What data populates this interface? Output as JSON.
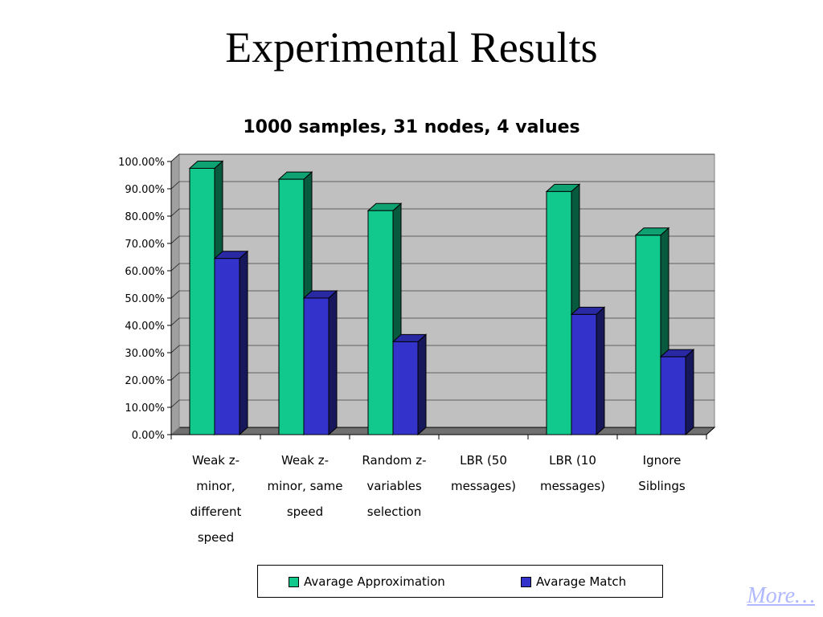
{
  "slide": {
    "title": "Experimental Results",
    "more_link": "More…"
  },
  "chart_data": {
    "type": "bar",
    "title": "1000 samples, 31 nodes, 4 values",
    "categories": [
      "Weak z-minor, different speed",
      "Weak z-minor, same speed",
      "Random z-variables selection",
      "LBR (50 messages)",
      "LBR (10 messages)",
      "Ignore Siblings"
    ],
    "category_label_lines": [
      [
        "Weak z-",
        "minor,",
        "different",
        "speed"
      ],
      [
        "Weak z-",
        "minor, same",
        "speed"
      ],
      [
        "Random z-",
        "variables",
        "selection"
      ],
      [
        "LBR (50",
        "messages)"
      ],
      [
        "LBR (10",
        "messages)"
      ],
      [
        "Ignore",
        "Siblings"
      ]
    ],
    "series": [
      {
        "name": "Avarage Approximation",
        "values": [
          0.975,
          0.935,
          0.82,
          null,
          0.89,
          0.73
        ],
        "color": "#12c98d"
      },
      {
        "name": "Avarage Match",
        "values": [
          0.645,
          0.5,
          0.34,
          null,
          0.44,
          0.285
        ],
        "color": "#3333cc"
      }
    ],
    "ylim": [
      0,
      1
    ],
    "yticks": [
      "0.00%",
      "10.00%",
      "20.00%",
      "30.00%",
      "40.00%",
      "50.00%",
      "60.00%",
      "70.00%",
      "80.00%",
      "90.00%",
      "100.00%"
    ],
    "grid": true,
    "legend_position": "bottom",
    "plot_background": "#c0c0c0"
  }
}
